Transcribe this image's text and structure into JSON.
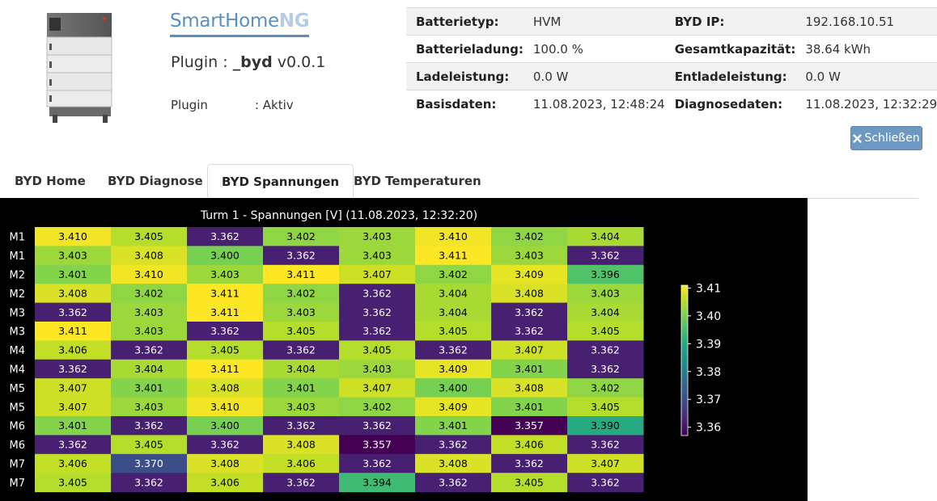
{
  "header": {
    "logo_main": "SmartHome",
    "logo_ng": "NG",
    "plugin_prefix": "Plugin : ",
    "plugin_name": "_byd",
    "plugin_version": "v0.0.1",
    "status_label": "Plugin",
    "status_value": ": Aktiv"
  },
  "info": {
    "rows": [
      [
        "Batterietyp:",
        "HVM",
        "BYD IP:",
        "192.168.10.51"
      ],
      [
        "Batterieladung:",
        "100.0 %",
        "Gesamtkapazität:",
        "38.64 kWh"
      ],
      [
        "Ladeleistung:",
        "0.0 W",
        "Entladeleistung:",
        "0.0 W"
      ],
      [
        "Basisdaten:",
        "11.08.2023, 12:48:24",
        "Diagnosedaten:",
        "11.08.2023, 12:32:29"
      ]
    ]
  },
  "close_button": {
    "icon": "close-icon",
    "label": "Schließen"
  },
  "tabs": [
    "BYD Home",
    "BYD Diagnose",
    "BYD Spannungen",
    "BYD Temperaturen"
  ],
  "active_tab": 2,
  "chart_data": {
    "type": "heatmap",
    "title": "Turm 1 - Spannungen [V] (11.08.2023, 12:32:20)",
    "row_labels": [
      "M1",
      "M1",
      "M2",
      "M2",
      "M3",
      "M3",
      "M4",
      "M4",
      "M5",
      "M5",
      "M6",
      "M6",
      "M7",
      "M7"
    ],
    "values": [
      [
        3.41,
        3.405,
        3.362,
        3.402,
        3.403,
        3.41,
        3.402,
        3.404
      ],
      [
        3.403,
        3.408,
        3.4,
        3.362,
        3.403,
        3.411,
        3.403,
        3.362
      ],
      [
        3.401,
        3.41,
        3.403,
        3.411,
        3.407,
        3.402,
        3.409,
        3.396
      ],
      [
        3.408,
        3.402,
        3.411,
        3.402,
        3.362,
        3.404,
        3.408,
        3.403
      ],
      [
        3.362,
        3.403,
        3.411,
        3.403,
        3.362,
        3.404,
        3.362,
        3.404
      ],
      [
        3.411,
        3.403,
        3.362,
        3.405,
        3.362,
        3.405,
        3.362,
        3.405
      ],
      [
        3.406,
        3.362,
        3.405,
        3.362,
        3.405,
        3.362,
        3.407,
        3.362
      ],
      [
        3.362,
        3.404,
        3.411,
        3.404,
        3.403,
        3.409,
        3.401,
        3.362
      ],
      [
        3.407,
        3.401,
        3.408,
        3.401,
        3.407,
        3.4,
        3.408,
        3.402
      ],
      [
        3.407,
        3.403,
        3.41,
        3.403,
        3.402,
        3.409,
        3.401,
        3.405
      ],
      [
        3.401,
        3.362,
        3.4,
        3.362,
        3.362,
        3.401,
        3.357,
        3.39
      ],
      [
        3.362,
        3.405,
        3.362,
        3.408,
        3.357,
        3.362,
        3.406,
        3.362
      ],
      [
        3.406,
        3.37,
        3.408,
        3.406,
        3.362,
        3.408,
        3.362,
        3.407
      ],
      [
        3.405,
        3.362,
        3.406,
        3.362,
        3.394,
        3.362,
        3.405,
        3.362
      ]
    ],
    "colorscale": "viridis",
    "vmin": 3.357,
    "vmax": 3.411,
    "colorbar_ticks": [
      "3.41",
      "3.40",
      "3.39",
      "3.38",
      "3.37",
      "3.36"
    ]
  }
}
